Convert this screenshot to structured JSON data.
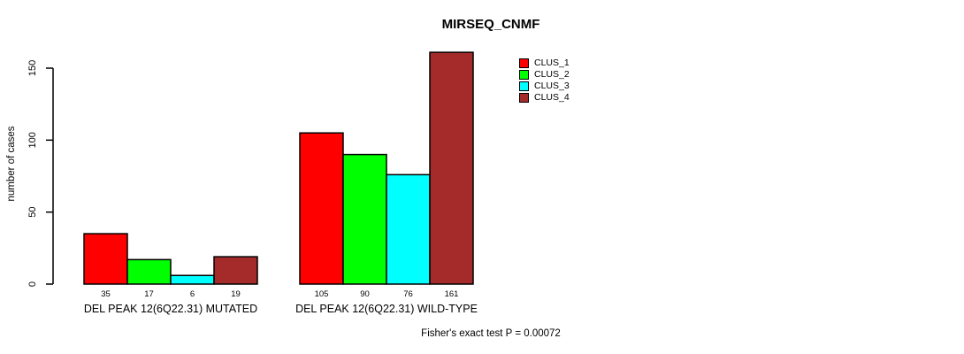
{
  "title": "MIRSEQ_CNMF",
  "footnote": "Fisher's exact test P = 0.00072",
  "colors": {
    "background": "#FFFFFF",
    "axis": "#000000",
    "clus_1": "#FF0000",
    "clus_2": "#00FF00",
    "clus_3": "#00FFFF",
    "clus_4": "#A52A2A"
  },
  "legend": {
    "position": "inside-top-right",
    "items": [
      {
        "label": "CLUS_1",
        "color": "#FF0000"
      },
      {
        "label": "CLUS_2",
        "color": "#00FF00"
      },
      {
        "label": "CLUS_3",
        "color": "#00FFFF"
      },
      {
        "label": "CLUS_4",
        "color": "#A52A2A"
      }
    ]
  },
  "chart_data": {
    "type": "bar",
    "title": "MIRSEQ_CNMF",
    "xlabel": "",
    "ylabel": "number of cases",
    "yticks": [
      0,
      50,
      100,
      150
    ],
    "ylim": [
      0,
      165
    ],
    "grid": false,
    "bar_value_labels": true,
    "legend_position": "inside-top-right",
    "categories": [
      "DEL PEAK 12(6Q22.31) MUTATED",
      "DEL PEAK 12(6Q22.31) WILD-TYPE"
    ],
    "series": [
      {
        "name": "CLUS_1",
        "color": "#FF0000",
        "values": [
          35,
          105
        ]
      },
      {
        "name": "CLUS_2",
        "color": "#00FF00",
        "values": [
          17,
          90
        ]
      },
      {
        "name": "CLUS_3",
        "color": "#00FFFF",
        "values": [
          6,
          76
        ]
      },
      {
        "name": "CLUS_4",
        "color": "#A52A2A",
        "values": [
          19,
          161
        ]
      }
    ],
    "annotation": "Fisher's exact test P = 0.00072"
  }
}
